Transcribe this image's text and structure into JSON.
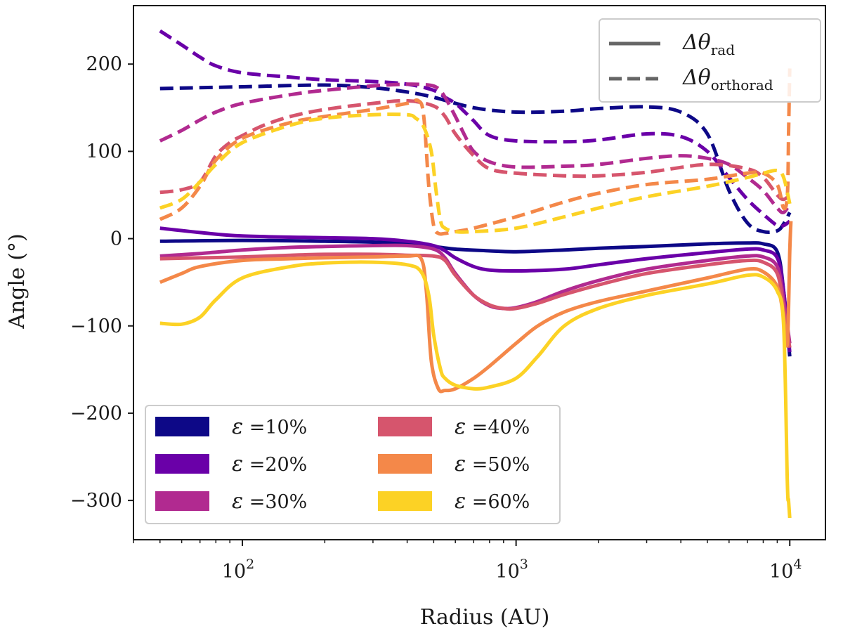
{
  "chart_data": {
    "type": "line",
    "xlabel": "Radius (AU)",
    "ylabel": "Angle (°)",
    "xscale": "log",
    "xlim": [
      40,
      13500
    ],
    "ylim": [
      -345,
      267
    ],
    "x_ticks": [
      {
        "value": 100,
        "base": "10",
        "exp": "2"
      },
      {
        "value": 1000,
        "base": "10",
        "exp": "3"
      },
      {
        "value": 10000,
        "base": "10",
        "exp": "4"
      }
    ],
    "y_ticks": [
      {
        "value": 200,
        "label": "200"
      },
      {
        "value": 100,
        "label": "100"
      },
      {
        "value": 0,
        "label": "0"
      },
      {
        "value": -100,
        "label": "−100"
      },
      {
        "value": -200,
        "label": "−200"
      },
      {
        "value": -300,
        "label": "−300"
      }
    ],
    "style_legend": {
      "position": "top-right",
      "entries": [
        {
          "style": "solid",
          "symbol": "Δθ",
          "sub": "rad"
        },
        {
          "style": "dashed",
          "symbol": "Δθ",
          "sub": "orthorad"
        }
      ]
    },
    "color_legend": {
      "position": "lower-left",
      "entries": [
        {
          "symbol": "ε",
          "text": " =10%",
          "color": "#0d0887"
        },
        {
          "symbol": "ε",
          "text": " =20%",
          "color": "#6a00a8"
        },
        {
          "symbol": "ε",
          "text": " =30%",
          "color": "#b12a90"
        },
        {
          "symbol": "ε",
          "text": " =40%",
          "color": "#d6556d"
        },
        {
          "symbol": "ε",
          "text": " =50%",
          "color": "#f48849"
        },
        {
          "symbol": "ε",
          "text": " =60%",
          "color": "#fcd225"
        }
      ]
    },
    "series": [
      {
        "name": "ε=10% Δθ_rad",
        "color": "#0d0887",
        "style": "solid",
        "x": [
          50,
          100,
          200,
          300,
          400,
          500,
          600,
          800,
          1000,
          1500,
          2000,
          3000,
          5000,
          7000,
          8000,
          9000,
          9500,
          10000
        ],
        "y": [
          -3,
          -2,
          -3,
          -4,
          -6,
          -9,
          -12,
          -14,
          -15,
          -13,
          -11,
          -9,
          -6,
          -5,
          -6,
          -15,
          -60,
          -135
        ]
      },
      {
        "name": "ε=20% Δθ_rad",
        "color": "#6a00a8",
        "style": "solid",
        "x": [
          50,
          70,
          100,
          200,
          300,
          400,
          500,
          550,
          600,
          700,
          800,
          1000,
          1500,
          2000,
          3000,
          5000,
          7000,
          8000,
          9000,
          9500,
          10000
        ],
        "y": [
          12,
          7,
          3,
          1,
          0,
          -3,
          -8,
          -14,
          -22,
          -32,
          -36,
          -37,
          -35,
          -30,
          -23,
          -16,
          -12,
          -13,
          -22,
          -60,
          -130
        ]
      },
      {
        "name": "ε=30% Δθ_rad",
        "color": "#b12a90",
        "style": "solid",
        "x": [
          50,
          70,
          100,
          150,
          200,
          300,
          400,
          500,
          550,
          600,
          700,
          800,
          900,
          1000,
          1200,
          1500,
          2000,
          3000,
          5000,
          7000,
          8000,
          9000,
          9500,
          10000
        ],
        "y": [
          -20,
          -17,
          -13,
          -10,
          -9,
          -8,
          -8,
          -12,
          -22,
          -40,
          -65,
          -77,
          -80,
          -79,
          -72,
          -60,
          -48,
          -35,
          -25,
          -20,
          -21,
          -32,
          -70,
          -120
        ]
      },
      {
        "name": "ε=40% Δθ_rad",
        "color": "#d6556d",
        "style": "solid",
        "x": [
          50,
          70,
          100,
          150,
          200,
          300,
          400,
          500,
          550,
          600,
          700,
          800,
          900,
          1000,
          1200,
          1500,
          2000,
          3000,
          5000,
          7000,
          8000,
          9000,
          9500,
          10000
        ],
        "y": [
          -23,
          -22,
          -21,
          -19,
          -18,
          -18,
          -19,
          -20,
          -25,
          -42,
          -65,
          -76,
          -80,
          -80,
          -74,
          -64,
          -53,
          -40,
          -30,
          -25,
          -27,
          -40,
          -80,
          -125
        ]
      },
      {
        "name": "ε=50% Δθ_rad",
        "color": "#f48849",
        "style": "solid",
        "x": [
          50,
          60,
          70,
          100,
          150,
          200,
          300,
          400,
          450,
          470,
          490,
          520,
          550,
          600,
          700,
          800,
          1000,
          1200,
          1500,
          2000,
          3000,
          5000,
          7000,
          8000,
          9000,
          9500,
          9800,
          10000,
          10100
        ],
        "y": [
          -50,
          -40,
          -32,
          -25,
          -23,
          -22,
          -21,
          -20,
          -23,
          -60,
          -140,
          -172,
          -174,
          -172,
          -160,
          -146,
          -120,
          -100,
          -84,
          -72,
          -60,
          -45,
          -35,
          -38,
          -55,
          -90,
          -120,
          -15,
          20
        ]
      },
      {
        "name": "ε=60% Δθ_rad",
        "color": "#fcd225",
        "style": "solid",
        "x": [
          50,
          60,
          70,
          80,
          100,
          150,
          200,
          300,
          400,
          450,
          480,
          500,
          530,
          550,
          600,
          700,
          800,
          1000,
          1200,
          1500,
          2000,
          3000,
          5000,
          7000,
          8000,
          9000,
          9500,
          9800,
          9900,
          10000
        ],
        "y": [
          -97,
          -98,
          -90,
          -70,
          -45,
          -32,
          -28,
          -27,
          -30,
          -38,
          -65,
          -110,
          -150,
          -160,
          -168,
          -172,
          -170,
          -160,
          -135,
          -100,
          -80,
          -65,
          -52,
          -42,
          -44,
          -60,
          -100,
          -280,
          -300,
          -320
        ]
      },
      {
        "name": "ε=10% Δθ_orthorad",
        "color": "#0d0887",
        "style": "dashed",
        "x": [
          50,
          100,
          200,
          300,
          400,
          500,
          700,
          1000,
          1500,
          2000,
          3000,
          4000,
          5000,
          6000,
          7000,
          8000,
          9000,
          9500,
          10000
        ],
        "y": [
          172,
          174,
          176,
          173,
          168,
          162,
          150,
          145,
          146,
          149,
          151,
          145,
          120,
          55,
          18,
          8,
          9,
          17,
          30
        ]
      },
      {
        "name": "ε=20% Δθ_orthorad",
        "color": "#6a00a8",
        "style": "dashed",
        "x": [
          50,
          60,
          70,
          80,
          100,
          150,
          200,
          300,
          400,
          500,
          550,
          600,
          650,
          700,
          800,
          1000,
          1500,
          2000,
          3000,
          4000,
          5000,
          6000,
          7000,
          8000,
          9000,
          9500,
          10000
        ],
        "y": [
          238,
          222,
          208,
          198,
          190,
          185,
          182,
          180,
          177,
          170,
          162,
          155,
          145,
          135,
          118,
          112,
          111,
          113,
          120,
          117,
          100,
          70,
          45,
          28,
          15,
          15,
          20
        ]
      },
      {
        "name": "ε=30% Δθ_orthorad",
        "color": "#b12a90",
        "style": "dashed",
        "x": [
          50,
          60,
          70,
          80,
          100,
          150,
          200,
          300,
          400,
          480,
          520,
          550,
          600,
          650,
          700,
          800,
          1000,
          1500,
          2000,
          3000,
          4000,
          5000,
          6000,
          7000,
          8000,
          9000,
          9500,
          10000
        ],
        "y": [
          112,
          124,
          136,
          145,
          155,
          165,
          170,
          175,
          177,
          176,
          172,
          162,
          140,
          118,
          100,
          88,
          82,
          83,
          85,
          92,
          95,
          92,
          85,
          70,
          55,
          35,
          30,
          40
        ]
      },
      {
        "name": "ε=40% Δθ_orthorad",
        "color": "#d6556d",
        "style": "dashed",
        "x": [
          50,
          60,
          70,
          80,
          90,
          100,
          120,
          150,
          200,
          300,
          400,
          500,
          550,
          600,
          700,
          800,
          1000,
          1500,
          2000,
          3000,
          5000,
          7000,
          8000,
          9000,
          9500,
          10000
        ],
        "y": [
          53,
          56,
          65,
          95,
          110,
          118,
          130,
          140,
          148,
          155,
          158,
          152,
          140,
          120,
          95,
          80,
          75,
          72,
          72,
          76,
          85,
          80,
          70,
          50,
          45,
          50
        ]
      },
      {
        "name": "ε=50% Δθ_orthorad",
        "color": "#f48849",
        "style": "dashed",
        "x": [
          50,
          60,
          70,
          80,
          100,
          150,
          200,
          300,
          400,
          440,
          460,
          480,
          500,
          520,
          550,
          600,
          700,
          1000,
          1500,
          2000,
          3000,
          5000,
          7000,
          8000,
          9000,
          9500,
          9800,
          9900,
          10000
        ],
        "y": [
          22,
          35,
          60,
          90,
          115,
          133,
          140,
          148,
          155,
          158,
          140,
          60,
          15,
          6,
          6,
          8,
          12,
          25,
          42,
          52,
          62,
          68,
          75,
          75,
          62,
          35,
          50,
          120,
          195
        ]
      },
      {
        "name": "ε=60% Δθ_orthorad",
        "color": "#fcd225",
        "style": "dashed",
        "x": [
          50,
          60,
          70,
          80,
          100,
          150,
          200,
          300,
          400,
          430,
          460,
          490,
          510,
          530,
          550,
          600,
          700,
          1000,
          1500,
          2000,
          3000,
          5000,
          7000,
          8000,
          9000,
          9500,
          10000
        ],
        "y": [
          35,
          45,
          65,
          85,
          110,
          130,
          138,
          142,
          142,
          138,
          128,
          100,
          55,
          20,
          12,
          8,
          8,
          12,
          25,
          35,
          48,
          60,
          70,
          75,
          78,
          70,
          40
        ]
      }
    ]
  }
}
